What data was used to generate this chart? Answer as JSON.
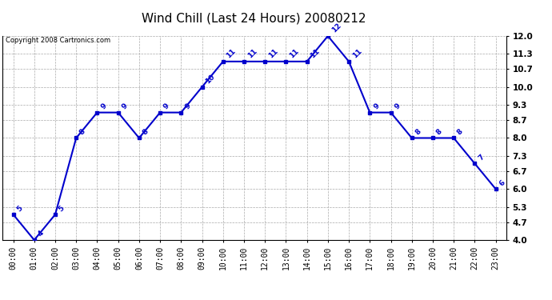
{
  "title": "Wind Chill (Last 24 Hours) 20080212",
  "copyright": "Copyright 2008 Cartronics.com",
  "hours": [
    "00:00",
    "01:00",
    "02:00",
    "03:00",
    "04:00",
    "05:00",
    "06:00",
    "07:00",
    "08:00",
    "09:00",
    "10:00",
    "11:00",
    "12:00",
    "13:00",
    "14:00",
    "15:00",
    "16:00",
    "17:00",
    "18:00",
    "19:00",
    "20:00",
    "21:00",
    "22:00",
    "23:00"
  ],
  "values": [
    5,
    4,
    5,
    8,
    9,
    9,
    8,
    9,
    9,
    10,
    11,
    11,
    11,
    11,
    11,
    12,
    11,
    9,
    9,
    8,
    8,
    8,
    7,
    6
  ],
  "ylim": [
    4.0,
    12.0
  ],
  "yticks": [
    4.0,
    4.7,
    5.3,
    6.0,
    6.7,
    7.3,
    8.0,
    8.7,
    9.3,
    10.0,
    10.7,
    11.3,
    12.0
  ],
  "line_color": "#0000cc",
  "marker_color": "#0000cc",
  "bg_color": "#ffffff",
  "plot_bg_color": "#ffffff",
  "grid_color": "#aaaaaa",
  "title_fontsize": 11,
  "label_fontsize": 7,
  "annotation_fontsize": 6.5,
  "copyright_fontsize": 6
}
